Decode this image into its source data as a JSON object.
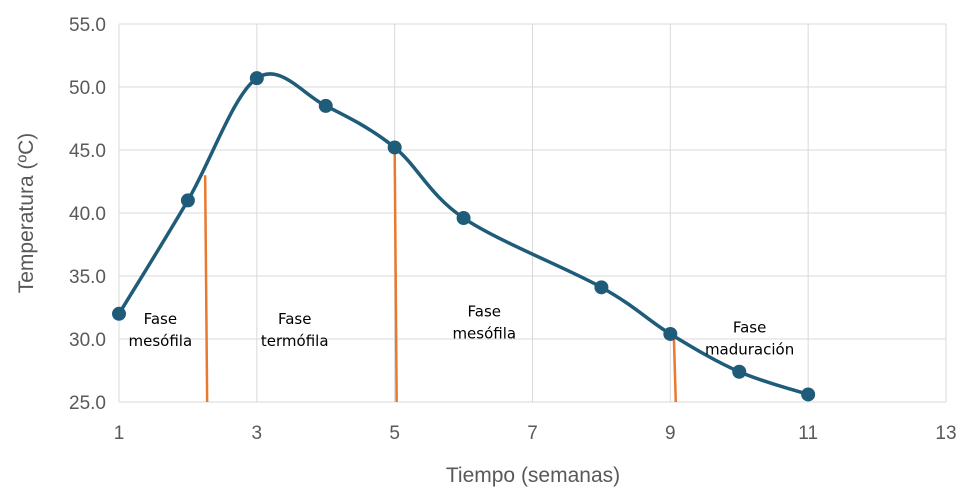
{
  "chart_data": {
    "type": "line",
    "xlabel": "Tiempo (semanas)",
    "ylabel": "Temperatura (ºC)",
    "xlim": [
      1,
      13
    ],
    "ylim": [
      25.0,
      55.0
    ],
    "x_ticks": [
      "1",
      "3",
      "5",
      "7",
      "9",
      "11",
      "13"
    ],
    "y_ticks": [
      "25.0",
      "30.0",
      "35.0",
      "40.0",
      "45.0",
      "50.0",
      "55.0"
    ],
    "x_tick_values": [
      1,
      3,
      5,
      7,
      9,
      11,
      13
    ],
    "y_tick_values": [
      25,
      30,
      35,
      40,
      45,
      50,
      55
    ],
    "grid": true,
    "smooth": true,
    "series": [
      {
        "x": [
          1,
          2,
          3,
          4,
          5,
          6,
          8,
          9,
          10,
          11
        ],
        "y": [
          32.0,
          41.0,
          50.7,
          48.5,
          45.2,
          39.6,
          34.1,
          30.4,
          27.4,
          25.6
        ],
        "color": "#1F5C7A"
      }
    ],
    "phase_lines": [
      {
        "x": 2.25,
        "y": 43.0
      },
      {
        "x": 5.0,
        "y": 45.2
      },
      {
        "x": 9.05,
        "y": 30.4
      }
    ],
    "phase_line_color": "#E8792F",
    "annotations": [
      {
        "lines": [
          "Fase",
          "mesófila"
        ],
        "x": 1.6,
        "y": 31.2
      },
      {
        "lines": [
          "Fase",
          "termófila"
        ],
        "x": 3.55,
        "y": 31.2
      },
      {
        "lines": [
          "Fase",
          "mesófila"
        ],
        "x": 6.3,
        "y": 31.8
      },
      {
        "lines": [
          "Fase",
          "maduración"
        ],
        "x": 10.15,
        "y": 30.5
      }
    ]
  }
}
